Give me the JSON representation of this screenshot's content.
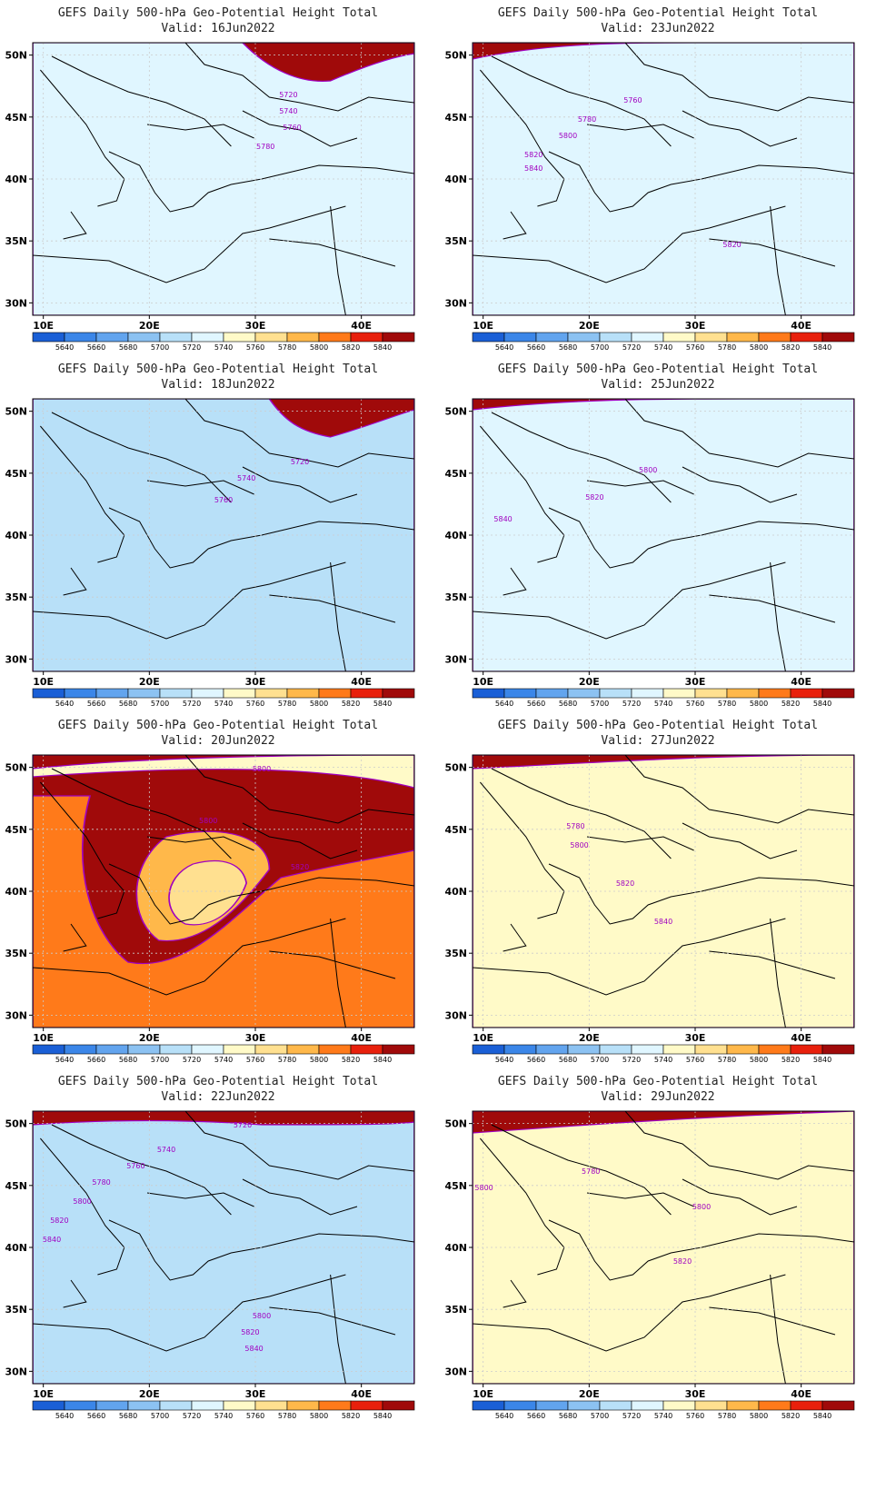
{
  "title": "GEFS Daily 500-hPa Geo-Potential Height Total",
  "valid_prefix": "Valid:",
  "lat_labels": [
    "50N",
    "45N",
    "40N",
    "35N",
    "30N"
  ],
  "lon_labels": [
    "10E",
    "20E",
    "30E",
    "40E"
  ],
  "colorbar": {
    "levels": [
      "5640",
      "5660",
      "5680",
      "5700",
      "5720",
      "5740",
      "5760",
      "5780",
      "5800",
      "5820",
      "5840"
    ],
    "colors": [
      "#1a5fd6",
      "#3b86e8",
      "#62a4ee",
      "#8cc2f2",
      "#b8e0f8",
      "#e0f6ff",
      "#fffac8",
      "#ffe090",
      "#ffb84a",
      "#ff7a1a",
      "#e8200c",
      "#a00a0a"
    ]
  },
  "contour_line_color": "#a000c0",
  "panels": [
    {
      "valid": "16Jun2022",
      "contour_labels": [
        "5720",
        "5740",
        "5760",
        "5780"
      ]
    },
    {
      "valid": "23Jun2022",
      "contour_labels": [
        "5760",
        "5780",
        "5800",
        "5820",
        "5840",
        "5820"
      ]
    },
    {
      "valid": "18Jun2022",
      "contour_labels": [
        "5720",
        "5740",
        "5760"
      ]
    },
    {
      "valid": "25Jun2022",
      "contour_labels": [
        "5800",
        "5820",
        "5840"
      ]
    },
    {
      "valid": "20Jun2022",
      "contour_labels": [
        "5800",
        "5800",
        "5820"
      ]
    },
    {
      "valid": "27Jun2022",
      "contour_labels": [
        "5780",
        "5800",
        "5820",
        "5840"
      ]
    },
    {
      "valid": "22Jun2022",
      "contour_labels": [
        "5720",
        "5740",
        "5760",
        "5780",
        "5800",
        "5820",
        "5840",
        "5800",
        "5820",
        "5840"
      ]
    },
    {
      "valid": "29Jun2022",
      "contour_labels": [
        "5800",
        "5780",
        "5800",
        "5820"
      ]
    }
  ]
}
